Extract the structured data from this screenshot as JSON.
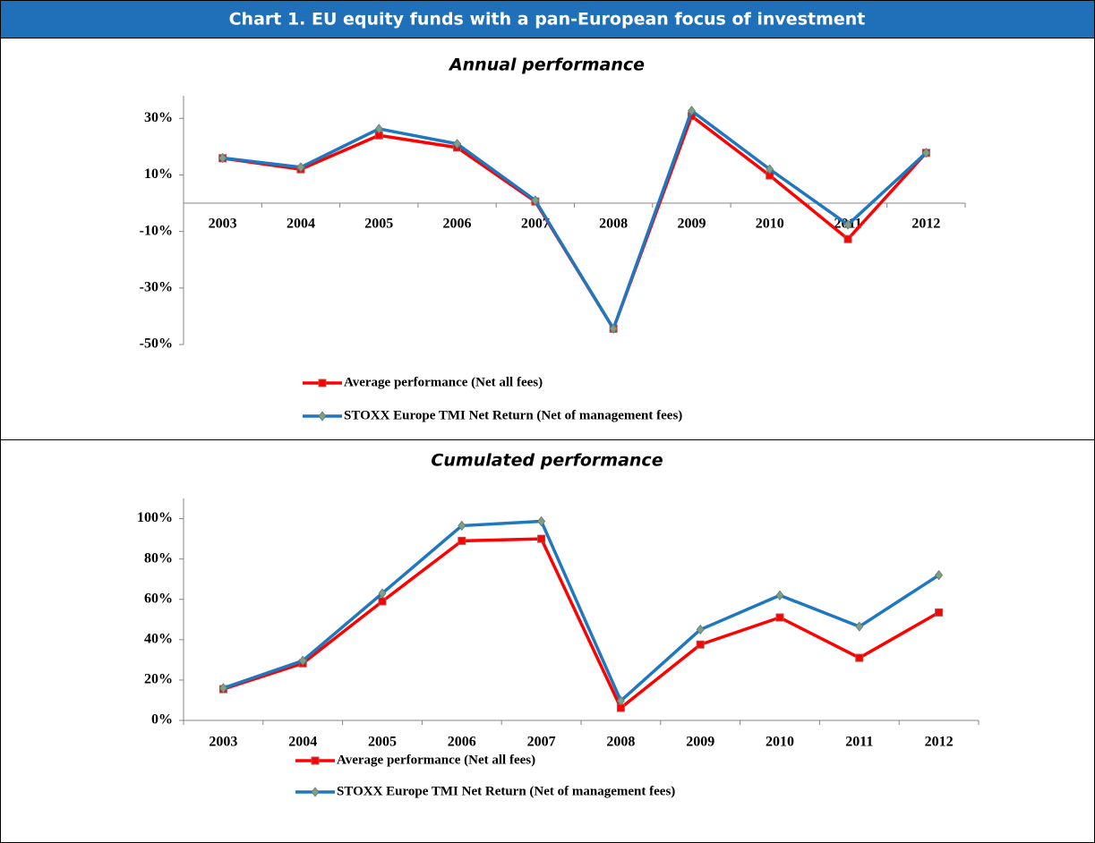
{
  "header": {
    "title": "Chart 1. EU equity funds with a pan-European focus of investment"
  },
  "chart_data": [
    {
      "type": "line",
      "title": "Annual performance",
      "categories": [
        "2003",
        "2004",
        "2005",
        "2006",
        "2007",
        "2008",
        "2009",
        "2010",
        "2011",
        "2012"
      ],
      "series": [
        {
          "name": "Average performance (Net all fees)",
          "color": "#ff0000",
          "marker": "square",
          "values": [
            15.9,
            12,
            24,
            19.7,
            0.6,
            -44.4,
            30.8,
            9.8,
            -12.7,
            17.8
          ]
        },
        {
          "name": "STOXX Europe TMI Net Return (Net of management fees)",
          "color": "#1f77c0",
          "marker": "diamond",
          "values": [
            16,
            12.7,
            26.3,
            21,
            1,
            -44.4,
            32.7,
            12,
            -7.6,
            17.8
          ]
        }
      ],
      "ylim": [
        -50,
        38
      ],
      "yticks": [
        {
          "value": -50,
          "label": "-50%"
        },
        {
          "value": -30,
          "label": "-30%"
        },
        {
          "value": -10,
          "label": "-10%"
        },
        {
          "value": 10,
          "label": "10%"
        },
        {
          "value": 30,
          "label": "30%"
        }
      ]
    },
    {
      "type": "line",
      "title": "Cumulated performance",
      "categories": [
        "2003",
        "2004",
        "2005",
        "2006",
        "2007",
        "2008",
        "2009",
        "2010",
        "2011",
        "2012"
      ],
      "series": [
        {
          "name": "Average performance (Net all fees)",
          "color": "#ff0000",
          "marker": "square",
          "values": [
            15.5,
            28.3,
            59,
            89,
            90,
            6.2,
            37.6,
            51,
            31,
            53.5
          ]
        },
        {
          "name": "STOXX Europe TMI Net Return (Net of management fees)",
          "color": "#1f77c0",
          "marker": "diamond",
          "values": [
            16,
            29.6,
            63,
            96.5,
            98.7,
            9.7,
            45,
            62,
            46.5,
            72
          ]
        }
      ],
      "ylim": [
        0,
        110
      ],
      "yticks": [
        {
          "value": 0,
          "label": "0%"
        },
        {
          "value": 20,
          "label": "20%"
        },
        {
          "value": 40,
          "label": "40%"
        },
        {
          "value": 60,
          "label": "60%"
        },
        {
          "value": 80,
          "label": "80%"
        },
        {
          "value": 100,
          "label": "100%"
        }
      ]
    }
  ]
}
